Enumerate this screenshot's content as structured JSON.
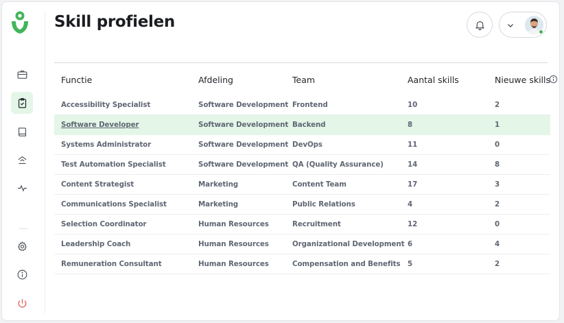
{
  "page": {
    "title": "Skill profielen"
  },
  "colors": {
    "accent": "#43b55b",
    "highlight_row": "#e3f6e7",
    "logout": "#e25555"
  },
  "sidebar": {
    "items": [
      {
        "name": "briefcase-icon",
        "active": false
      },
      {
        "name": "clipboard-check-icon",
        "active": true
      },
      {
        "name": "book-icon",
        "active": false
      },
      {
        "name": "upload-home-icon",
        "active": false
      },
      {
        "name": "activity-icon",
        "active": false
      },
      {
        "name": "gear-icon",
        "active": false
      },
      {
        "name": "info-icon",
        "active": false
      },
      {
        "name": "power-icon",
        "active": false
      }
    ]
  },
  "table": {
    "headers": [
      "Functie",
      "Afdeling",
      "Team",
      "Aantal skills",
      "Nieuwe skills"
    ],
    "rows": [
      [
        "Accessibility Specialist",
        "Software Development",
        "Frontend",
        "10",
        "2"
      ],
      [
        "Software Developer",
        "Software Development",
        "Backend",
        "8",
        "1"
      ],
      [
        "Systems Administrator",
        "Software Development",
        "DevOps",
        "11",
        "0"
      ],
      [
        "Test Automation Specialist",
        "Software Development",
        "QA (Quality Assurance)",
        "14",
        "8"
      ],
      [
        "Content Strategist",
        "Marketing",
        "Content Team",
        "17",
        "3"
      ],
      [
        "Communications Specialist",
        "Marketing",
        "Public Relations",
        "4",
        "2"
      ],
      [
        "Selection Coordinator",
        "Human Resources",
        "Recruitment",
        "12",
        "0"
      ],
      [
        "Leadership Coach",
        "Human Resources",
        "Organizational Development",
        "6",
        "4"
      ],
      [
        "Remuneration Consultant",
        "Human Resources",
        "Compensation and Benefits",
        "5",
        "2"
      ]
    ],
    "highlighted_row": 1
  }
}
